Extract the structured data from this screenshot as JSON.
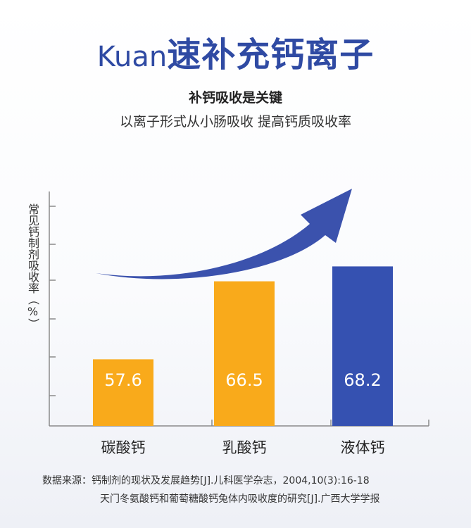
{
  "header": {
    "title_brand": "Kuan",
    "title_main": "速补充钙离子",
    "subtitle_bold": "补钙吸收是关键",
    "subtitle": "以离子形式从小肠吸收 提高钙质吸收率"
  },
  "chart_data": {
    "type": "bar",
    "categories": [
      "碳酸钙",
      "乳酸钙",
      "液体钙"
    ],
    "values": [
      57.6,
      66.5,
      68.2
    ],
    "value_labels": [
      "57.6",
      "66.5",
      "68.2"
    ],
    "title": "",
    "xlabel": "",
    "ylabel": "常见钙制剂吸收率（%）",
    "ylim": [
      50,
      70
    ],
    "grid": false,
    "colors": [
      "#f9aa1b",
      "#f9aa1b",
      "#3551b1"
    ],
    "annotations": [
      "upward-trend-arrow"
    ]
  },
  "source": {
    "line1": "数据来源：钙制剂的现状及发展趋势[J].儿科医学杂志，2004,10(3):16-18",
    "line2": "天门冬氨酸钙和葡萄糖酸钙兔体内吸收度的研究[J].广西大学学报"
  },
  "colors": {
    "title": "#2f4aa3",
    "bar_orange": "#f9aa1b",
    "bar_blue": "#3551b1",
    "arrow": "#3b52ad"
  }
}
